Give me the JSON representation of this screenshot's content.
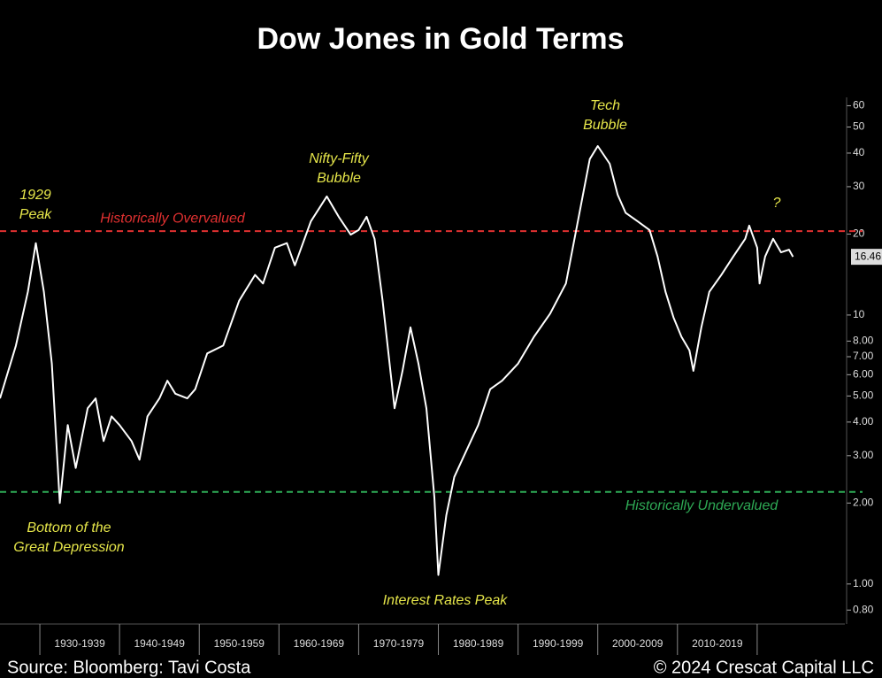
{
  "chart_data": {
    "type": "line",
    "title": "Dow Jones in Gold Terms",
    "source": "Source: Bloomberg: Tavi Costa",
    "copyright": "© 2024 Crescat Capital LLC",
    "log_scale": true,
    "xlim": [
      1925,
      2031
    ],
    "ylim": [
      0.71,
      75
    ],
    "yticks": [
      60,
      50,
      40,
      30,
      20,
      10,
      {
        "value": 8,
        "label": "8.00"
      },
      {
        "value": 7,
        "label": "7.00"
      },
      {
        "value": 6,
        "label": "6.00"
      },
      {
        "value": 5,
        "label": "5.00"
      },
      {
        "value": 4,
        "label": "4.00"
      },
      {
        "value": 3,
        "label": "3.00"
      },
      {
        "value": 2,
        "label": "2.00"
      },
      {
        "value": 1,
        "label": "1.00"
      },
      {
        "value": 0.8,
        "label": "0.80"
      }
    ],
    "xticks": [
      {
        "value": 1930,
        "label": "1930-1939"
      },
      {
        "value": 1940,
        "label": "1940-1949"
      },
      {
        "value": 1950,
        "label": "1950-1959"
      },
      {
        "value": 1960,
        "label": "1960-1969"
      },
      {
        "value": 1970,
        "label": "1970-1979"
      },
      {
        "value": 1980,
        "label": "1980-1989"
      },
      {
        "value": 1990,
        "label": "1990-1999"
      },
      {
        "value": 2000,
        "label": "2000-2009"
      },
      {
        "value": 2010,
        "label": "2010-2019"
      }
    ],
    "x": [
      1925,
      1927,
      1928.5,
      1929.5,
      1930.5,
      1931.5,
      1932.5,
      1933.5,
      1934.5,
      1936,
      1937,
      1938,
      1939,
      1940,
      1941.5,
      1942.5,
      1943.5,
      1945,
      1946,
      1947,
      1948.5,
      1949.5,
      1951,
      1953,
      1955,
      1957,
      1958,
      1959.5,
      1961,
      1962,
      1964,
      1966,
      1967.5,
      1969,
      1970,
      1971,
      1972,
      1973,
      1974.5,
      1975.5,
      1976.5,
      1977.5,
      1978.5,
      1979.5,
      1980,
      1981,
      1982,
      1983,
      1985,
      1986.5,
      1988,
      1990,
      1992,
      1994,
      1996,
      1997.5,
      1999,
      2000,
      2001.5,
      2002.5,
      2003.5,
      2005,
      2006.5,
      2007.5,
      2008.5,
      2009.5,
      2010.5,
      2011.5,
      2012,
      2013,
      2014,
      2015.5,
      2017,
      2018.5,
      2019,
      2020,
      2020.3,
      2021,
      2022,
      2023,
      2024,
      2024.5
    ],
    "series": [
      {
        "name": "Dow Jones in Gold Terms",
        "color": "#ffffff",
        "values": [
          4.9,
          7.7,
          12.2,
          18.5,
          12.2,
          6.6,
          2.0,
          3.9,
          2.7,
          4.5,
          4.9,
          3.4,
          4.2,
          3.9,
          3.4,
          2.9,
          4.2,
          4.9,
          5.7,
          5.1,
          4.9,
          5.3,
          7.2,
          7.7,
          11.3,
          14.1,
          13.1,
          17.8,
          18.5,
          15.3,
          22.3,
          27.6,
          23.2,
          19.9,
          20.7,
          23.2,
          19.2,
          11.3,
          4.5,
          6.2,
          9.0,
          6.6,
          4.5,
          2.1,
          1.08,
          1.8,
          2.5,
          2.9,
          3.9,
          5.3,
          5.7,
          6.6,
          8.3,
          10.1,
          13.1,
          22.3,
          38,
          42.5,
          36.5,
          28,
          24,
          22.3,
          20.7,
          16.5,
          12.2,
          9.8,
          8.3,
          7.4,
          6.2,
          9.0,
          12.2,
          14.1,
          16.5,
          19.2,
          21.5,
          17.8,
          13.1,
          16.5,
          19.2,
          17.1,
          17.5,
          16.46
        ]
      }
    ],
    "reference_lines": [
      {
        "label": "Historically Overvalued",
        "value": 20.5,
        "color": "#e03030"
      },
      {
        "label": "Historically Undervalued",
        "value": 2.2,
        "color": "#2eaa55"
      }
    ],
    "annotations": [
      {
        "lines": [
          "1929",
          "Peak"
        ]
      },
      {
        "lines": [
          "Nifty-Fifty",
          "Bubble"
        ]
      },
      {
        "lines": [
          "Tech",
          "Bubble"
        ]
      },
      {
        "lines": [
          "?"
        ]
      },
      {
        "lines": [
          "Bottom of the",
          "Great Depression"
        ]
      },
      {
        "lines": [
          "Interest Rates Peak"
        ]
      }
    ]
  }
}
